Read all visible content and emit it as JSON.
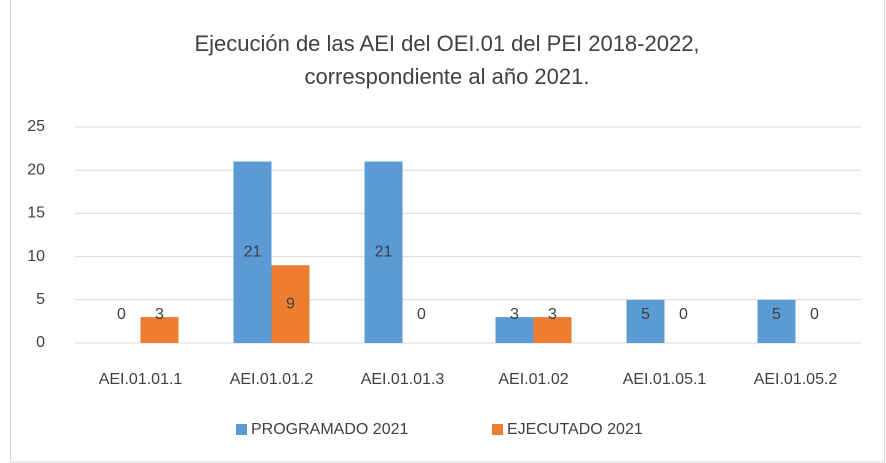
{
  "chart_data": {
    "type": "bar",
    "title": [
      "Ejecución  de las AEI del OEI.01 del  PEI 2018-2022,",
      "correspondiente al  año 2021."
    ],
    "categories": [
      "AEI.01.01.1",
      "AEI.01.01.2",
      "AEI.01.01.3",
      "AEI.01.02",
      "AEI.01.05.1",
      "AEI.01.05.2"
    ],
    "series": [
      {
        "name": "PROGRAMADO 2021",
        "color": "#5b9bd5",
        "values": [
          0,
          21,
          21,
          3,
          5,
          5
        ]
      },
      {
        "name": "EJECUTADO 2021",
        "color": "#ed7d31",
        "values": [
          3,
          9,
          0,
          3,
          0,
          0
        ]
      }
    ],
    "ylim": [
      0,
      25
    ],
    "yticks": [
      0,
      5,
      10,
      15,
      20,
      25
    ],
    "grid": true,
    "legend": "bottom"
  }
}
